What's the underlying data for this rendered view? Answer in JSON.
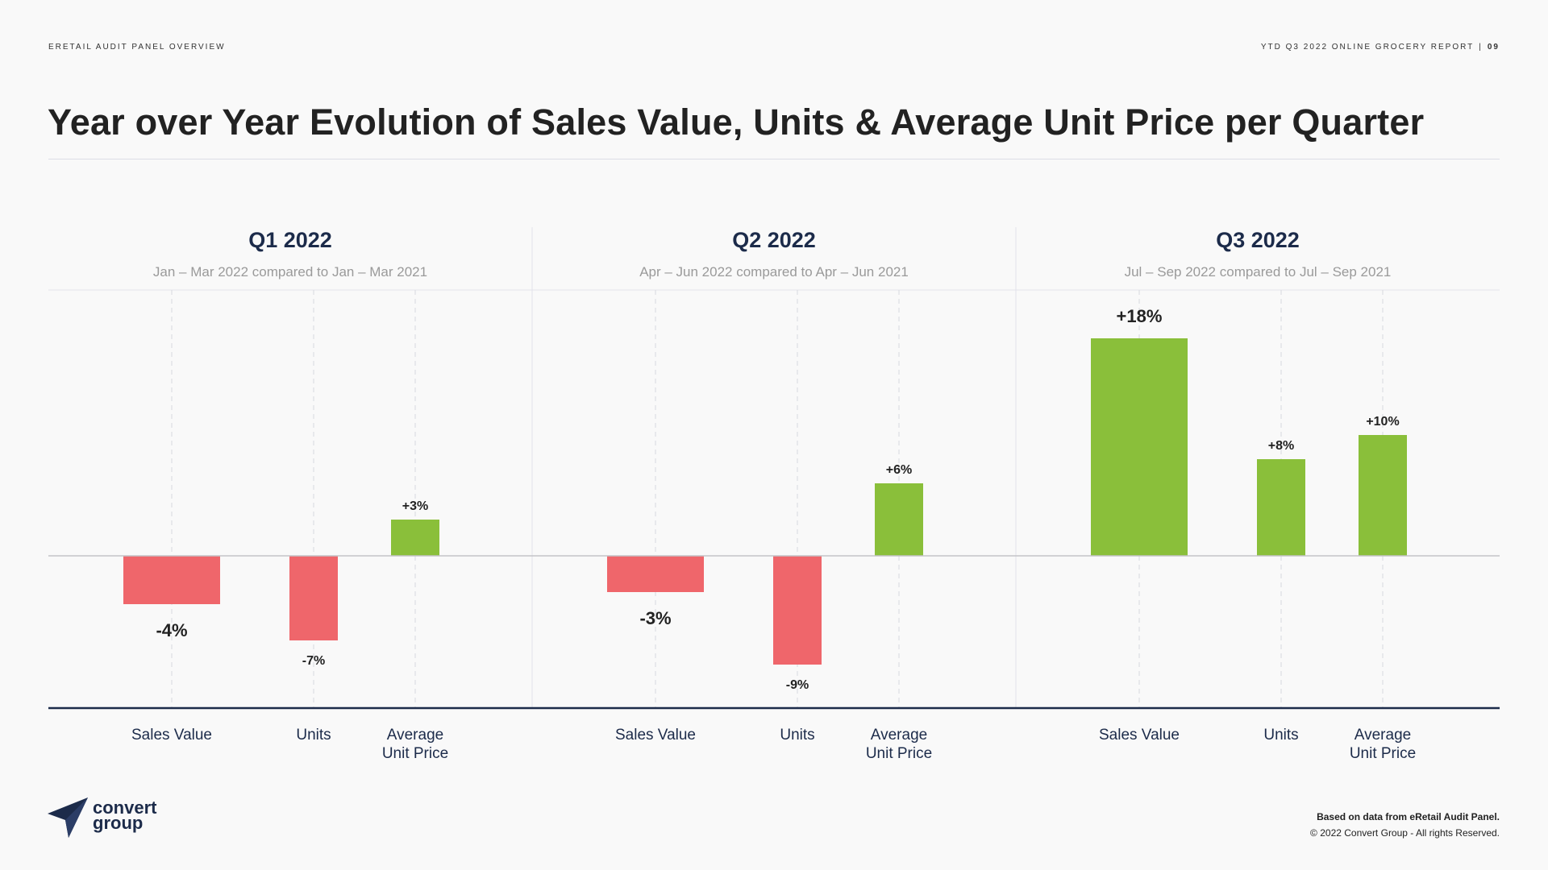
{
  "header": {
    "left_label": "ERETAIL AUDIT PANEL OVERVIEW",
    "right_label": "YTD Q3 2022  ONLINE GROCERY REPORT",
    "separator": "|",
    "page_number": "09"
  },
  "title": "Year over Year Evolution of Sales Value, Units & Average Unit Price per Quarter",
  "colors": {
    "positive": "#8abf3a",
    "negative": "#ef666b",
    "heading": "#1c2b4a",
    "subtitle": "#9a9a9a"
  },
  "chart_data": {
    "type": "bar",
    "ylabel": "",
    "xlabel": "",
    "ylim": [
      -12,
      19.5
    ],
    "grid": false,
    "categories": [
      "Sales Value",
      "Units",
      "Average Unit Price"
    ],
    "groups": [
      {
        "title": "Q1 2022",
        "subtitle": "Jan – Mar 2022 compared to Jan – Mar 2021",
        "values": [
          -4,
          -7,
          3
        ],
        "labels": [
          "-4%",
          "-7%",
          "+3%"
        ]
      },
      {
        "title": "Q2 2022",
        "subtitle": "Apr – Jun 2022 compared to Apr – Jun 2021",
        "values": [
          -3,
          -9,
          6
        ],
        "labels": [
          "-3%",
          "-9%",
          "+6%"
        ]
      },
      {
        "title": "Q3 2022",
        "subtitle": "Jul – Sep 2022 compared to Jul – Sep 2021",
        "values": [
          18,
          8,
          10
        ],
        "labels": [
          "+18%",
          "+8%",
          "+10%"
        ]
      }
    ],
    "category_labels": [
      [
        "Sales Value"
      ],
      [
        "Units"
      ],
      [
        "Average",
        "Unit Price"
      ]
    ]
  },
  "logo": {
    "line1": "convert",
    "line2": "group"
  },
  "footer": {
    "note": "Based on data from eRetail Audit Panel.",
    "copyright": "© 2022 Convert Group - All rights Reserved."
  }
}
